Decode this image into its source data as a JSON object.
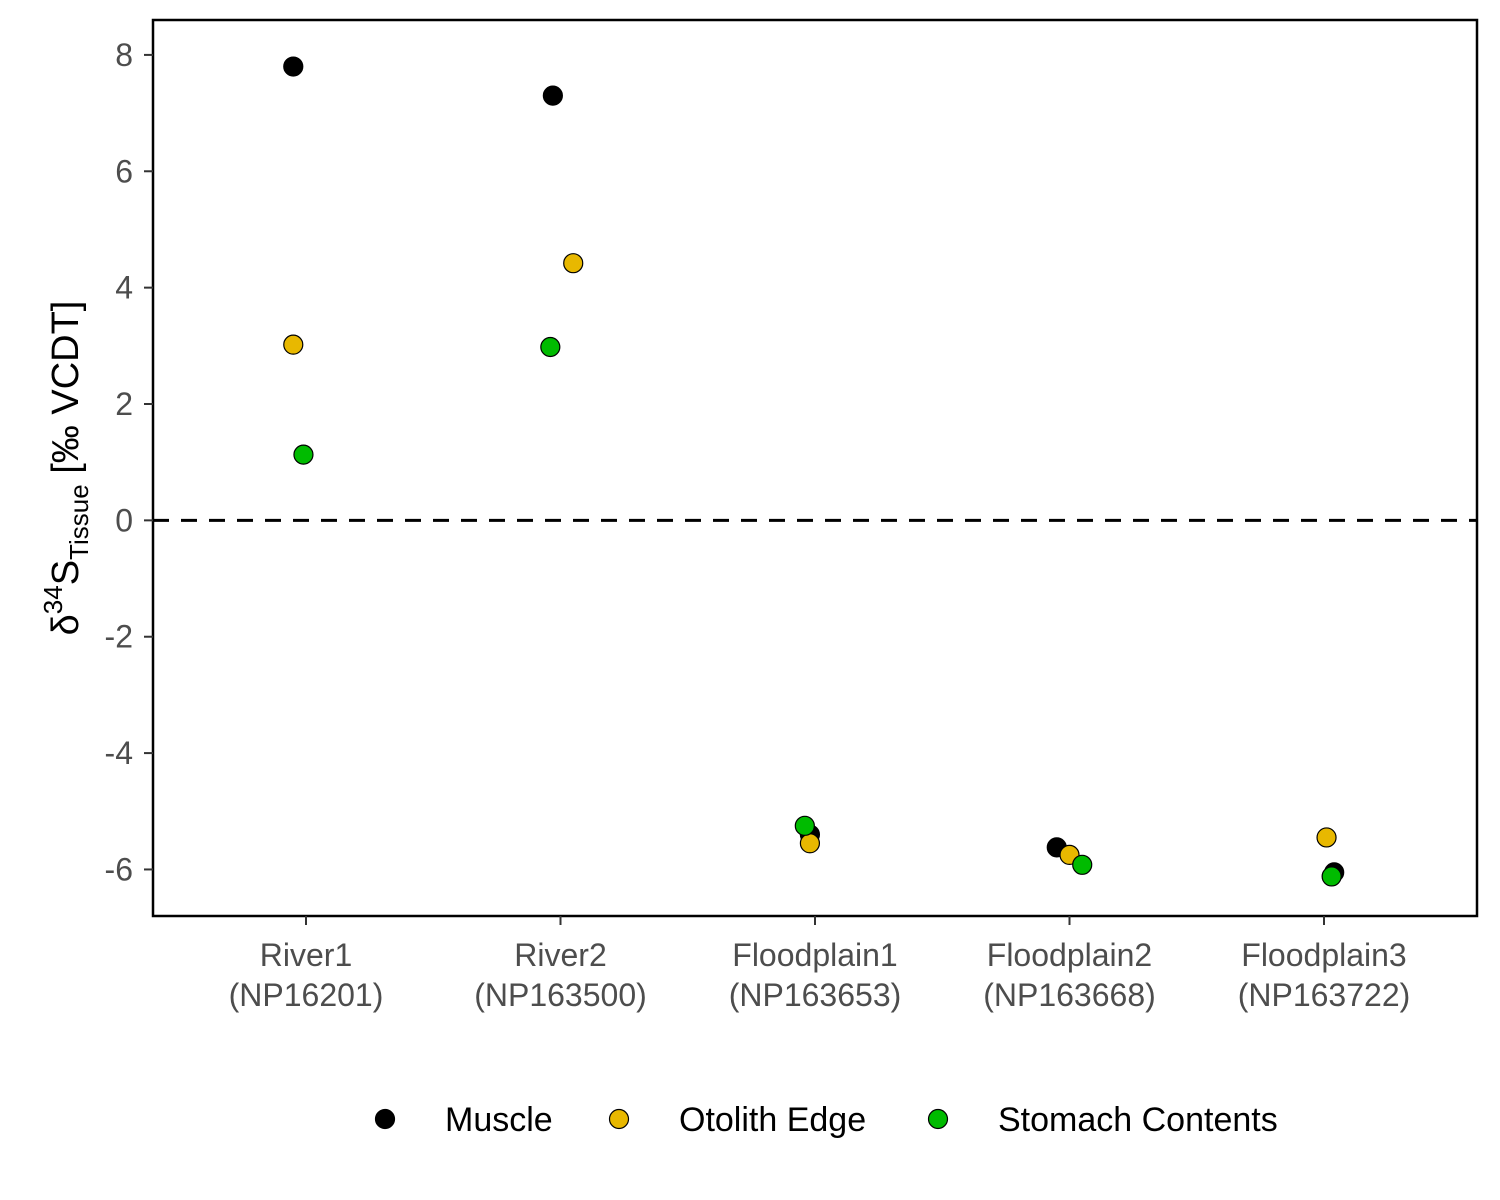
{
  "chart_data": {
    "type": "scatter",
    "categories": [
      [
        "River1",
        "(NP16201)"
      ],
      [
        "River2",
        "(NP163500)"
      ],
      [
        "Floodplain1",
        "(NP163653)"
      ],
      [
        "Floodplain2",
        "(NP163668)"
      ],
      [
        "Floodplain3",
        "(NP163722)"
      ]
    ],
    "ylabel": {
      "prefix": "δ",
      "superscript": "34",
      "main": "S",
      "subscript": "Tissue",
      "suffix": " [‰ VCDT]"
    },
    "ylim": [
      -6.8,
      8.6
    ],
    "yticks": [
      8,
      6,
      4,
      2,
      0,
      -2,
      -4,
      -6
    ],
    "reference_line": {
      "y": 0,
      "style": "dashed"
    },
    "legend_position": "bottom",
    "series": [
      {
        "name": "Muscle",
        "color": "#000000",
        "points": [
          {
            "category": 0,
            "jitter": -0.05,
            "y": 7.8
          },
          {
            "category": 1,
            "jitter": -0.03,
            "y": 7.3
          },
          {
            "category": 2,
            "jitter": -0.02,
            "y": -5.4
          },
          {
            "category": 3,
            "jitter": -0.05,
            "y": -5.62
          },
          {
            "category": 4,
            "jitter": 0.04,
            "y": -6.05
          }
        ]
      },
      {
        "name": "Otolith Edge",
        "color": "#E8B800",
        "points": [
          {
            "category": 0,
            "jitter": -0.05,
            "y": 3.02
          },
          {
            "category": 1,
            "jitter": 0.05,
            "y": 4.42
          },
          {
            "category": 2,
            "jitter": -0.02,
            "y": -5.55
          },
          {
            "category": 3,
            "jitter": 0.0,
            "y": -5.75
          },
          {
            "category": 4,
            "jitter": 0.01,
            "y": -5.45
          }
        ]
      },
      {
        "name": "Stomach Contents",
        "color": "#00BB00",
        "points": [
          {
            "category": 0,
            "jitter": -0.01,
            "y": 1.13
          },
          {
            "category": 1,
            "jitter": -0.04,
            "y": 2.98
          },
          {
            "category": 2,
            "jitter": -0.04,
            "y": -5.25
          },
          {
            "category": 3,
            "jitter": 0.05,
            "y": -5.92
          },
          {
            "category": 4,
            "jitter": 0.03,
            "y": -6.12
          }
        ]
      }
    ]
  }
}
